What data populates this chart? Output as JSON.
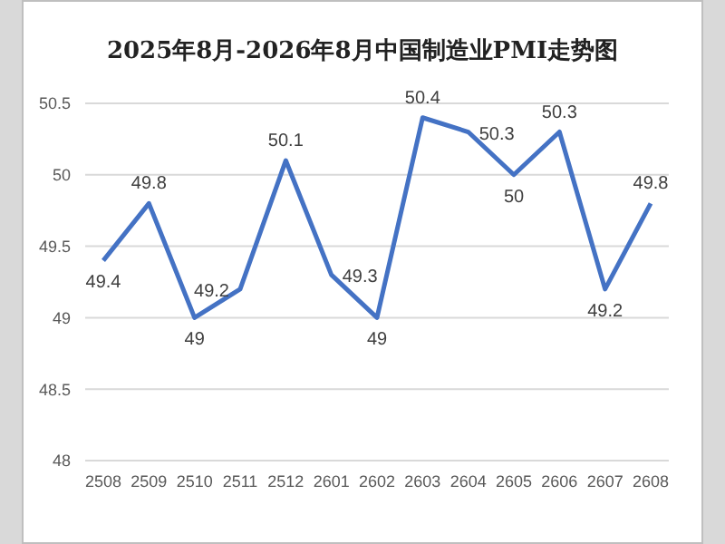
{
  "chart_data": {
    "type": "line",
    "title": "2025年8月-2026年8月中国制造业PMI走势图",
    "categories": [
      "2508",
      "2509",
      "2510",
      "2511",
      "2512",
      "2601",
      "2602",
      "2603",
      "2604",
      "2605",
      "2606",
      "2607",
      "2608"
    ],
    "series": [
      {
        "color": "#4472c4",
        "values": [
          49.4,
          49.8,
          49,
          49.2,
          50.1,
          49.3,
          49,
          50.4,
          50.3,
          50,
          50.3,
          49.2,
          49.8
        ]
      }
    ],
    "ylim": [
      48,
      50.5
    ],
    "yticks": [
      48,
      48.5,
      49,
      49.5,
      50,
      50.5
    ],
    "grid": "y",
    "legend": false,
    "marker": "none",
    "line_style": "solid",
    "data_labels": true
  }
}
